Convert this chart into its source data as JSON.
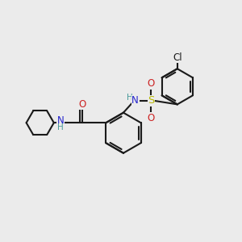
{
  "bg_color": "#ebebeb",
  "bond_color": "#1a1a1a",
  "bond_width": 1.5,
  "atom_colors": {
    "C": "#1a1a1a",
    "N": "#2222cc",
    "O": "#cc2222",
    "S": "#b8b800",
    "Cl": "#1a1a1a",
    "H": "#4a9a9a"
  },
  "font_size": 8.5
}
